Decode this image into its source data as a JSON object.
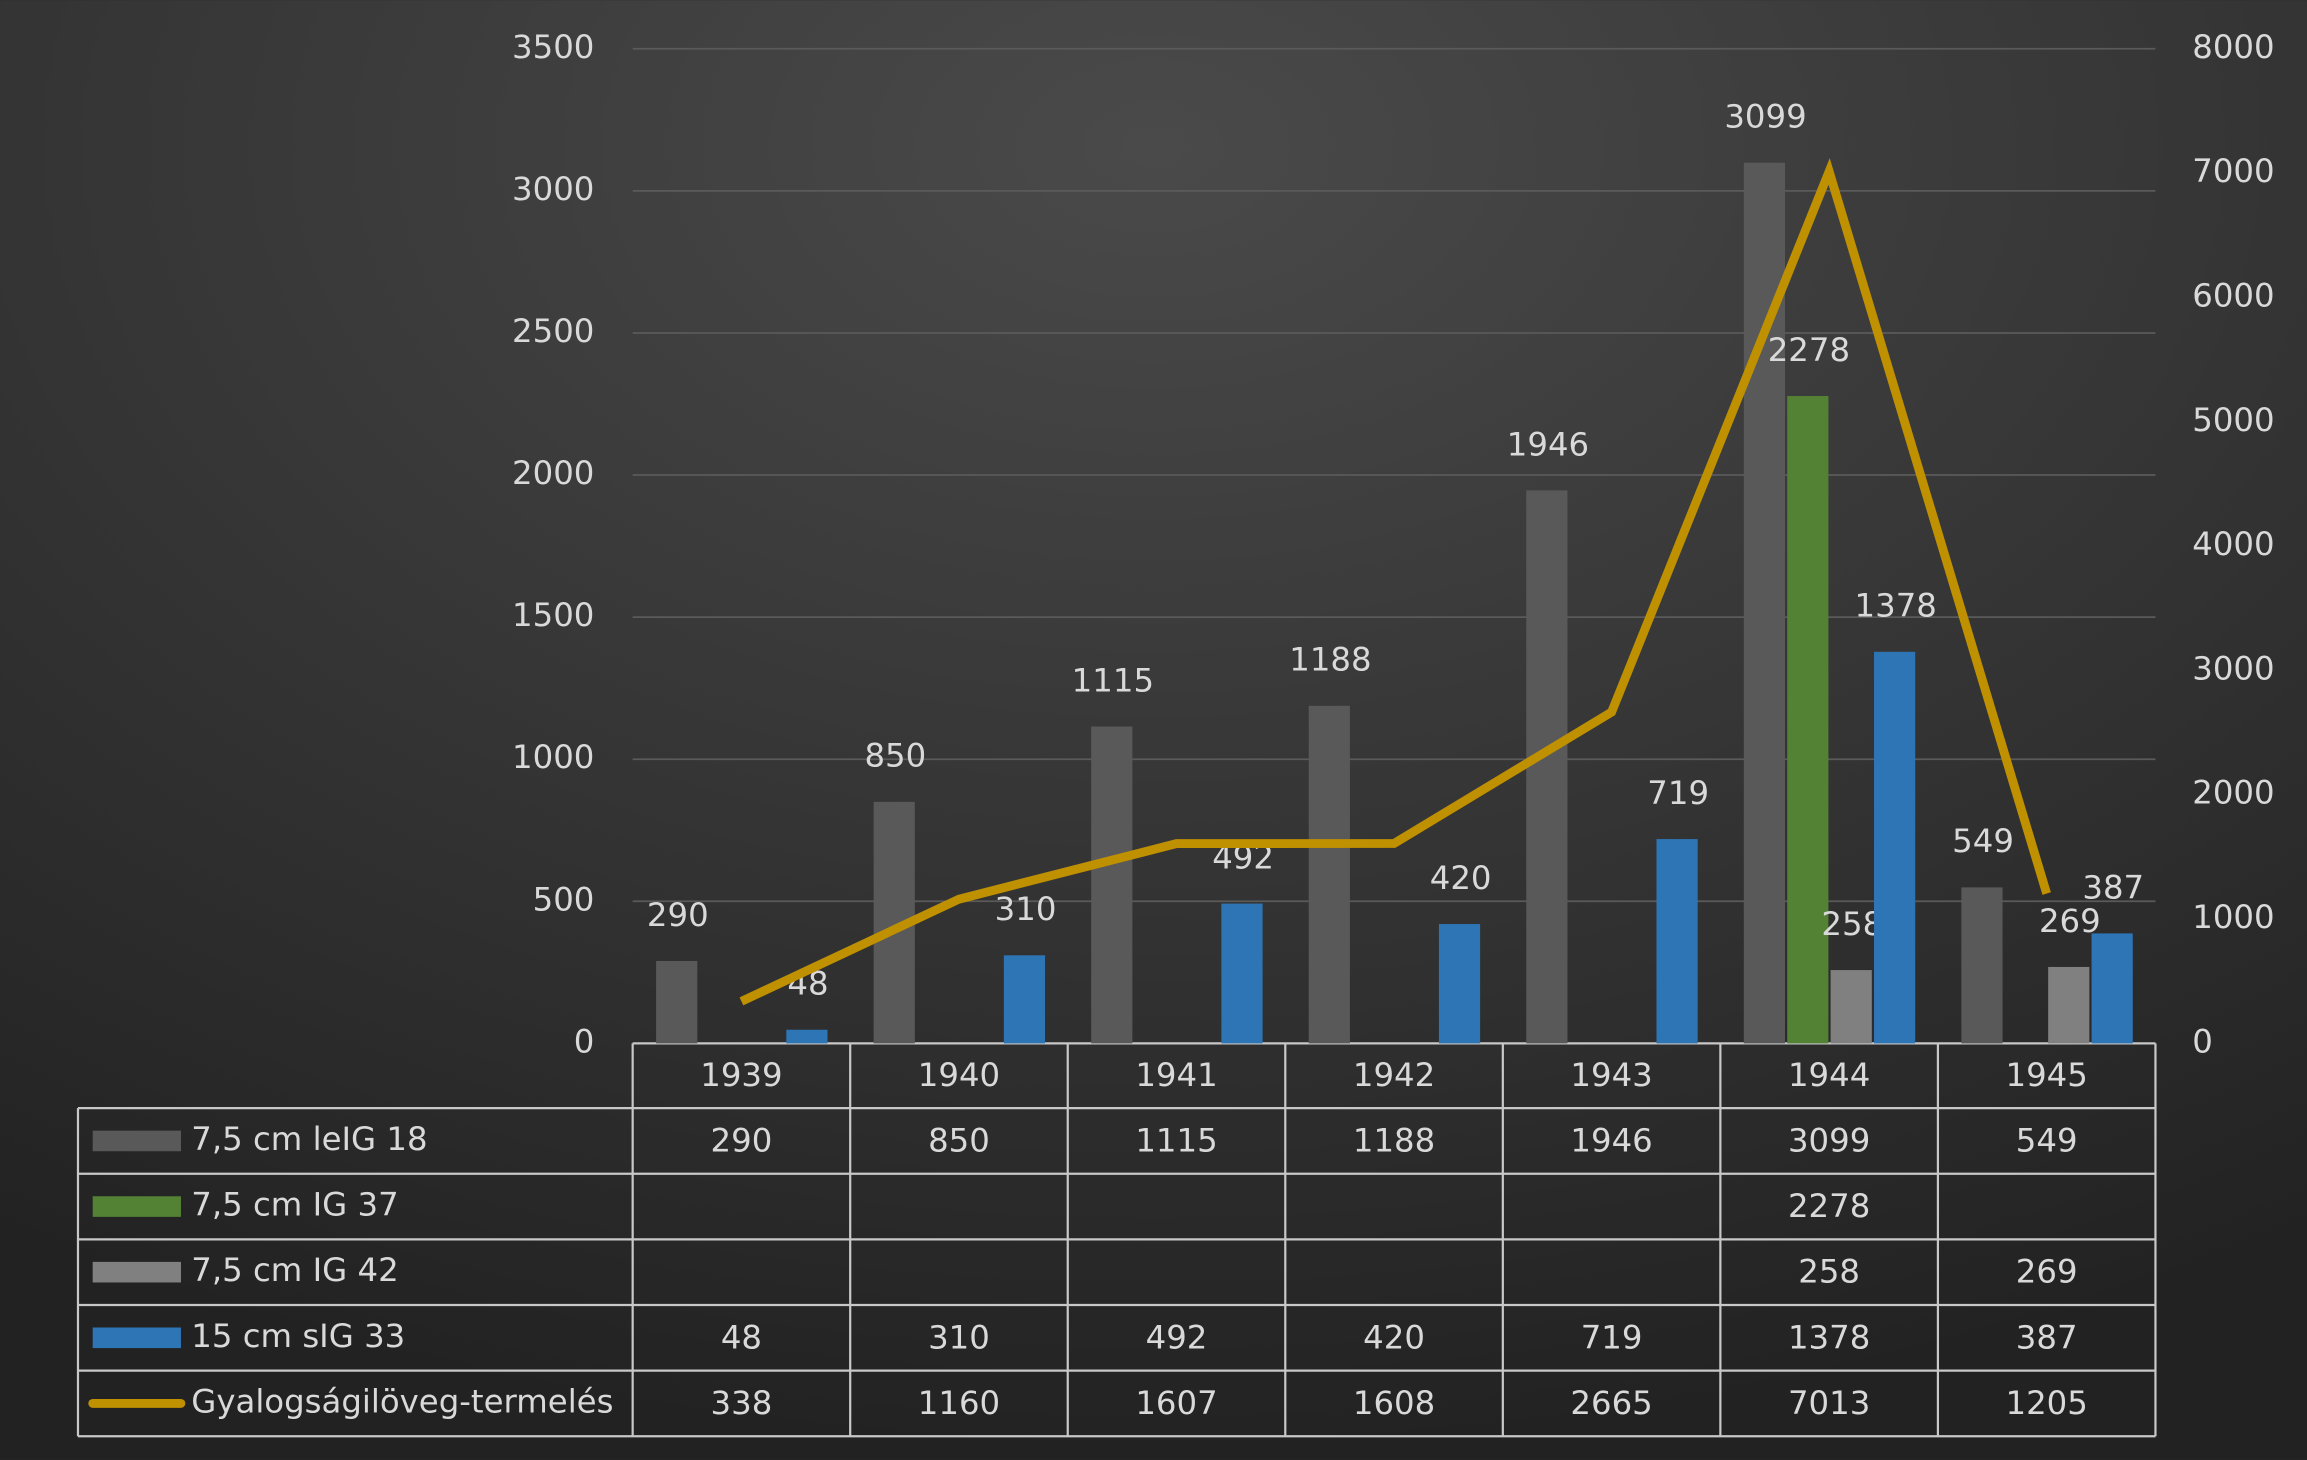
{
  "chart_data": {
    "type": "bar",
    "categories": [
      "1939",
      "1940",
      "1941",
      "1942",
      "1943",
      "1944",
      "1945"
    ],
    "series": [
      {
        "name": "7,5 cm leIG 18",
        "color": "#595959",
        "values": [
          290,
          850,
          1115,
          1188,
          1946,
          3099,
          549
        ]
      },
      {
        "name": "7,5 cm IG 37",
        "color": "#548235",
        "values": [
          null,
          null,
          null,
          null,
          null,
          2278,
          null
        ]
      },
      {
        "name": "7,5 cm IG 42",
        "color": "#808080",
        "values": [
          null,
          null,
          null,
          null,
          null,
          258,
          269
        ]
      },
      {
        "name": "15 cm sIG 33",
        "color": "#2e75b6",
        "values": [
          48,
          310,
          492,
          420,
          719,
          1378,
          387
        ]
      },
      {
        "name": "Gyalogságilöveg-termelés",
        "color": "#bf9000",
        "type": "line",
        "axis": "y2",
        "values": [
          338,
          1160,
          1607,
          1608,
          2665,
          7013,
          1205
        ]
      }
    ],
    "ylim": [
      0,
      3500
    ],
    "yticks": [
      0,
      500,
      1000,
      1500,
      2000,
      2500,
      3000,
      3500
    ],
    "y2lim": [
      0,
      8000
    ],
    "y2ticks": [
      0,
      1000,
      2000,
      3000,
      4000,
      5000,
      6000,
      7000,
      8000
    ],
    "grid": true
  }
}
